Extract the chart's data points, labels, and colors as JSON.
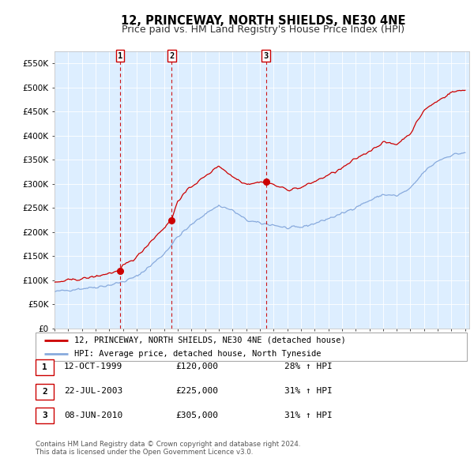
{
  "title": "12, PRINCEWAY, NORTH SHIELDS, NE30 4NE",
  "subtitle": "Price paid vs. HM Land Registry's House Price Index (HPI)",
  "legend_line1": "12, PRINCEWAY, NORTH SHIELDS, NE30 4NE (detached house)",
  "legend_line2": "HPI: Average price, detached house, North Tyneside",
  "transactions": [
    {
      "label": "1",
      "date_num": 1999.79,
      "price": 120000,
      "note": "12-OCT-1999",
      "pct": "28% ↑ HPI"
    },
    {
      "label": "2",
      "date_num": 2003.55,
      "price": 225000,
      "note": "22-JUL-2003",
      "pct": "31% ↑ HPI"
    },
    {
      "label": "3",
      "date_num": 2010.44,
      "price": 305000,
      "note": "08-JUN-2010",
      "pct": "31% ↑ HPI"
    }
  ],
  "hpi_anchors_x": [
    1995,
    1996,
    1997,
    1998,
    1999,
    2000,
    2001,
    2002,
    2003,
    2004,
    2005,
    2006,
    2007,
    2008,
    2009,
    2010,
    2011,
    2012,
    2013,
    2014,
    2015,
    2016,
    2017,
    2018,
    2019,
    2020,
    2021,
    2022,
    2023,
    2024,
    2025
  ],
  "hpi_anchors_y": [
    76000,
    80000,
    83000,
    86000,
    90000,
    97000,
    108000,
    130000,
    155000,
    190000,
    215000,
    238000,
    255000,
    245000,
    225000,
    218000,
    215000,
    208000,
    210000,
    218000,
    228000,
    238000,
    252000,
    265000,
    278000,
    275000,
    290000,
    325000,
    348000,
    360000,
    365000
  ],
  "pp_anchors_x": [
    1995,
    1996,
    1997,
    1998,
    1999.79,
    2000,
    2001,
    2002,
    2003.55,
    2004,
    2005,
    2006,
    2007,
    2008,
    2009,
    2010.44,
    2011,
    2012,
    2013,
    2014,
    2015,
    2016,
    2017,
    2018,
    2019,
    2020,
    2021,
    2022,
    2023,
    2024,
    2025
  ],
  "pp_anchors_y": [
    95000,
    100000,
    103000,
    108000,
    120000,
    130000,
    148000,
    180000,
    225000,
    265000,
    295000,
    315000,
    338000,
    315000,
    300000,
    305000,
    298000,
    288000,
    292000,
    305000,
    318000,
    332000,
    352000,
    368000,
    386000,
    382000,
    405000,
    453000,
    472000,
    490000,
    495000
  ],
  "xlim": [
    1995.0,
    2025.3
  ],
  "ylim": [
    0,
    575000
  ],
  "yticks": [
    0,
    50000,
    100000,
    150000,
    200000,
    250000,
    300000,
    350000,
    400000,
    450000,
    500000,
    550000
  ],
  "ytick_labels": [
    "£0",
    "£50K",
    "£100K",
    "£150K",
    "£200K",
    "£250K",
    "£300K",
    "£350K",
    "£400K",
    "£450K",
    "£500K",
    "£550K"
  ],
  "xticks": [
    1995,
    1996,
    1997,
    1998,
    1999,
    2000,
    2001,
    2002,
    2003,
    2004,
    2005,
    2006,
    2007,
    2008,
    2009,
    2010,
    2011,
    2012,
    2013,
    2014,
    2015,
    2016,
    2017,
    2018,
    2019,
    2020,
    2021,
    2022,
    2023,
    2024,
    2025
  ],
  "line_color_red": "#cc0000",
  "line_color_blue": "#88aadd",
  "dot_color": "#cc0000",
  "vline_color": "#cc0000",
  "bg_color": "#ddeeff",
  "transaction_box_color": "#cc0000",
  "footer": "Contains HM Land Registry data © Crown copyright and database right 2024.\nThis data is licensed under the Open Government Licence v3.0.",
  "title_fontsize": 10.5,
  "subtitle_fontsize": 9
}
